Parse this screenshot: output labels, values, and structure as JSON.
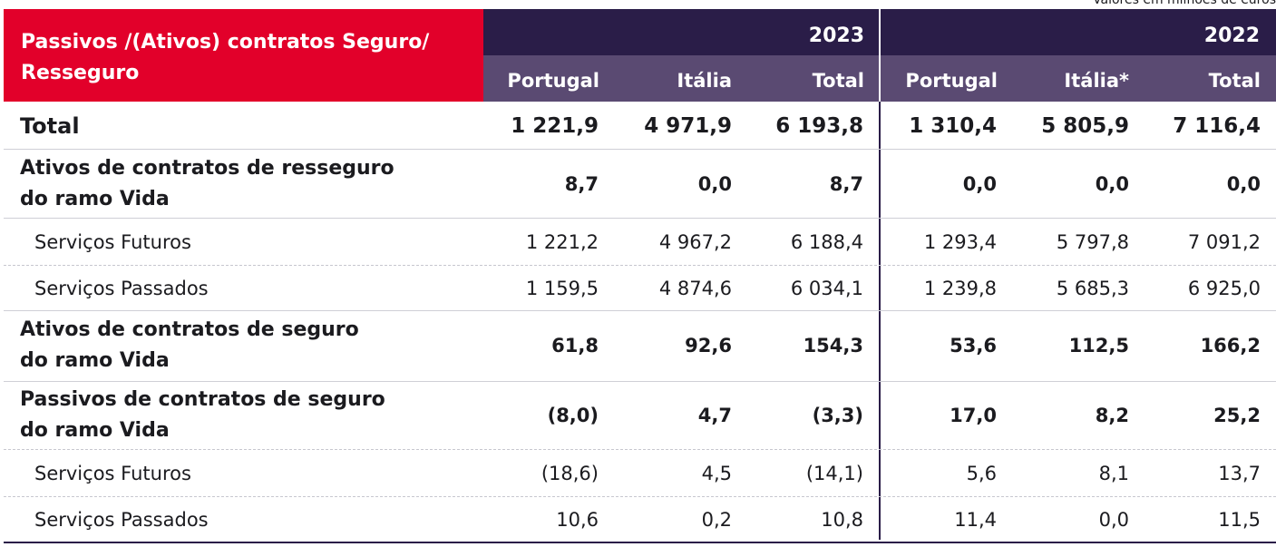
{
  "caption": "Valores em milhões de euros",
  "header": {
    "title": "Passivos /(Ativos) contratos Seguro/ Resseguro",
    "years": [
      "2023",
      "2022"
    ],
    "columns": [
      "Portugal",
      "Itália",
      "Total",
      "Portugal",
      "Itália*",
      "Total"
    ]
  },
  "rows": [
    {
      "label": "Total",
      "values": [
        "1 221,9",
        "4 971,9",
        "6 193,8",
        "1 310,4",
        "5 805,9",
        "7 116,4"
      ]
    },
    {
      "label": "Ativos de contratos de resseguro\ndo ramo Vida",
      "values": [
        "8,7",
        "0,0",
        "8,7",
        "0,0",
        "0,0",
        "0,0"
      ]
    },
    {
      "label": "Serviços Futuros",
      "values": [
        "1 221,2",
        "4 967,2",
        "6 188,4",
        "1 293,4",
        "5 797,8",
        "7 091,2"
      ]
    },
    {
      "label": "Serviços Passados",
      "values": [
        "1 159,5",
        "4 874,6",
        "6 034,1",
        "1 239,8",
        "5 685,3",
        "6 925,0"
      ]
    },
    {
      "label": "Ativos de contratos de seguro\ndo ramo Vida",
      "values": [
        "61,8",
        "92,6",
        "154,3",
        "53,6",
        "112,5",
        "166,2"
      ]
    },
    {
      "label": "Passivos de contratos de seguro\ndo ramo Vida",
      "values": [
        "(8,0)",
        "4,7",
        "(3,3)",
        "17,0",
        "8,2",
        "25,2"
      ]
    },
    {
      "label": "Serviços Futuros",
      "values": [
        "(18,6)",
        "4,5",
        "(14,1)",
        "5,6",
        "8,1",
        "13,7"
      ]
    },
    {
      "label": "Serviços Passados",
      "values": [
        "10,6",
        "0,2",
        "10,8",
        "11,4",
        "0,0",
        "11,5"
      ]
    }
  ]
}
